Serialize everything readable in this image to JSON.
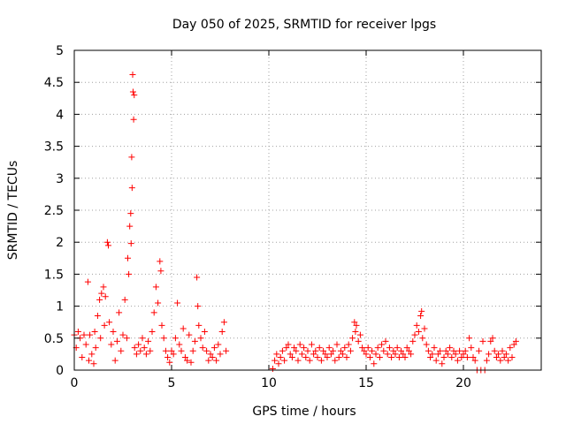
{
  "chart_data": {
    "type": "scatter",
    "title": "Day 050 of 2025, SRMTID for receiver lpgs",
    "xlabel": "GPS time / hours",
    "ylabel": "SRMTID / TECUs",
    "xlim": [
      0,
      24
    ],
    "ylim": [
      0,
      5
    ],
    "xticks": [
      "0",
      "5",
      "10",
      "15",
      "20"
    ],
    "yticks": [
      "0",
      "0.5",
      "1",
      "1.5",
      "2",
      "2.5",
      "3",
      "3.5",
      "4",
      "4.5",
      "5"
    ],
    "grid": true,
    "marker": "+",
    "series": [
      {
        "name": "SRMTID",
        "color": "#ff0000",
        "points": [
          [
            0.0,
            0.55
          ],
          [
            0.1,
            0.35
          ],
          [
            0.2,
            0.6
          ],
          [
            0.3,
            0.5
          ],
          [
            0.4,
            0.2
          ],
          [
            0.5,
            0.55
          ],
          [
            0.6,
            0.4
          ],
          [
            0.7,
            1.38
          ],
          [
            0.75,
            0.15
          ],
          [
            0.8,
            0.55
          ],
          [
            0.9,
            0.25
          ],
          [
            1.0,
            0.1
          ],
          [
            1.05,
            0.6
          ],
          [
            1.1,
            0.35
          ],
          [
            1.2,
            0.85
          ],
          [
            1.3,
            1.1
          ],
          [
            1.35,
            0.5
          ],
          [
            1.4,
            1.2
          ],
          [
            1.5,
            1.3
          ],
          [
            1.55,
            0.7
          ],
          [
            1.6,
            1.15
          ],
          [
            1.7,
            2.0
          ],
          [
            1.75,
            1.95
          ],
          [
            1.8,
            0.75
          ],
          [
            1.9,
            0.4
          ],
          [
            2.0,
            0.6
          ],
          [
            2.1,
            0.15
          ],
          [
            2.2,
            0.45
          ],
          [
            2.3,
            0.9
          ],
          [
            2.4,
            0.3
          ],
          [
            2.5,
            0.55
          ],
          [
            2.6,
            1.1
          ],
          [
            2.7,
            0.5
          ],
          [
            2.75,
            1.75
          ],
          [
            2.8,
            1.5
          ],
          [
            2.85,
            2.25
          ],
          [
            2.9,
            2.45
          ],
          [
            2.92,
            1.98
          ],
          [
            2.95,
            3.33
          ],
          [
            2.97,
            2.85
          ],
          [
            3.0,
            4.62
          ],
          [
            3.02,
            4.35
          ],
          [
            3.05,
            3.92
          ],
          [
            3.08,
            4.3
          ],
          [
            3.1,
            0.35
          ],
          [
            3.2,
            0.25
          ],
          [
            3.3,
            0.4
          ],
          [
            3.4,
            0.3
          ],
          [
            3.5,
            0.5
          ],
          [
            3.6,
            0.35
          ],
          [
            3.7,
            0.25
          ],
          [
            3.8,
            0.45
          ],
          [
            3.9,
            0.3
          ],
          [
            4.0,
            0.6
          ],
          [
            4.1,
            0.9
          ],
          [
            4.2,
            1.3
          ],
          [
            4.3,
            1.05
          ],
          [
            4.4,
            1.7
          ],
          [
            4.45,
            1.55
          ],
          [
            4.5,
            0.7
          ],
          [
            4.6,
            0.5
          ],
          [
            4.7,
            0.3
          ],
          [
            4.8,
            0.2
          ],
          [
            4.9,
            0.12
          ],
          [
            5.0,
            0.3
          ],
          [
            5.1,
            0.25
          ],
          [
            5.2,
            0.5
          ],
          [
            5.3,
            1.05
          ],
          [
            5.4,
            0.4
          ],
          [
            5.5,
            0.3
          ],
          [
            5.6,
            0.65
          ],
          [
            5.7,
            0.2
          ],
          [
            5.8,
            0.15
          ],
          [
            5.9,
            0.55
          ],
          [
            6.0,
            0.12
          ],
          [
            6.1,
            0.3
          ],
          [
            6.2,
            0.45
          ],
          [
            6.3,
            1.45
          ],
          [
            6.35,
            1.0
          ],
          [
            6.4,
            0.7
          ],
          [
            6.5,
            0.5
          ],
          [
            6.6,
            0.35
          ],
          [
            6.7,
            0.6
          ],
          [
            6.8,
            0.3
          ],
          [
            6.9,
            0.15
          ],
          [
            7.0,
            0.25
          ],
          [
            7.1,
            0.2
          ],
          [
            7.2,
            0.35
          ],
          [
            7.3,
            0.15
          ],
          [
            7.4,
            0.4
          ],
          [
            7.5,
            0.25
          ],
          [
            7.6,
            0.6
          ],
          [
            7.7,
            0.75
          ],
          [
            7.8,
            0.3
          ],
          [
            10.2,
            0.02
          ],
          [
            10.3,
            0.15
          ],
          [
            10.4,
            0.25
          ],
          [
            10.5,
            0.1
          ],
          [
            10.6,
            0.2
          ],
          [
            10.7,
            0.3
          ],
          [
            10.8,
            0.15
          ],
          [
            10.9,
            0.35
          ],
          [
            11.0,
            0.4
          ],
          [
            11.1,
            0.25
          ],
          [
            11.2,
            0.2
          ],
          [
            11.3,
            0.35
          ],
          [
            11.4,
            0.3
          ],
          [
            11.5,
            0.15
          ],
          [
            11.6,
            0.4
          ],
          [
            11.7,
            0.25
          ],
          [
            11.8,
            0.35
          ],
          [
            11.9,
            0.2
          ],
          [
            12.0,
            0.3
          ],
          [
            12.1,
            0.15
          ],
          [
            12.2,
            0.4
          ],
          [
            12.3,
            0.25
          ],
          [
            12.4,
            0.3
          ],
          [
            12.5,
            0.2
          ],
          [
            12.6,
            0.35
          ],
          [
            12.7,
            0.15
          ],
          [
            12.8,
            0.3
          ],
          [
            12.9,
            0.25
          ],
          [
            13.0,
            0.2
          ],
          [
            13.1,
            0.35
          ],
          [
            13.2,
            0.25
          ],
          [
            13.3,
            0.3
          ],
          [
            13.4,
            0.15
          ],
          [
            13.5,
            0.4
          ],
          [
            13.6,
            0.2
          ],
          [
            13.7,
            0.3
          ],
          [
            13.8,
            0.25
          ],
          [
            13.9,
            0.35
          ],
          [
            14.0,
            0.2
          ],
          [
            14.1,
            0.4
          ],
          [
            14.2,
            0.3
          ],
          [
            14.3,
            0.5
          ],
          [
            14.4,
            0.75
          ],
          [
            14.45,
            0.6
          ],
          [
            14.5,
            0.7
          ],
          [
            14.6,
            0.45
          ],
          [
            14.7,
            0.55
          ],
          [
            14.8,
            0.35
          ],
          [
            14.9,
            0.3
          ],
          [
            15.0,
            0.25
          ],
          [
            15.1,
            0.35
          ],
          [
            15.2,
            0.2
          ],
          [
            15.3,
            0.3
          ],
          [
            15.4,
            0.1
          ],
          [
            15.5,
            0.25
          ],
          [
            15.6,
            0.35
          ],
          [
            15.7,
            0.2
          ],
          [
            15.8,
            0.4
          ],
          [
            15.9,
            0.3
          ],
          [
            16.0,
            0.45
          ],
          [
            16.1,
            0.25
          ],
          [
            16.2,
            0.35
          ],
          [
            16.3,
            0.2
          ],
          [
            16.4,
            0.3
          ],
          [
            16.5,
            0.25
          ],
          [
            16.6,
            0.35
          ],
          [
            16.7,
            0.2
          ],
          [
            16.8,
            0.3
          ],
          [
            16.9,
            0.25
          ],
          [
            17.0,
            0.2
          ],
          [
            17.1,
            0.35
          ],
          [
            17.2,
            0.3
          ],
          [
            17.3,
            0.25
          ],
          [
            17.4,
            0.45
          ],
          [
            17.5,
            0.55
          ],
          [
            17.6,
            0.7
          ],
          [
            17.7,
            0.6
          ],
          [
            17.8,
            0.85
          ],
          [
            17.85,
            0.92
          ],
          [
            17.9,
            0.5
          ],
          [
            18.0,
            0.65
          ],
          [
            18.1,
            0.4
          ],
          [
            18.2,
            0.3
          ],
          [
            18.3,
            0.2
          ],
          [
            18.4,
            0.25
          ],
          [
            18.5,
            0.35
          ],
          [
            18.6,
            0.15
          ],
          [
            18.7,
            0.25
          ],
          [
            18.8,
            0.3
          ],
          [
            18.9,
            0.1
          ],
          [
            19.0,
            0.2
          ],
          [
            19.1,
            0.3
          ],
          [
            19.2,
            0.25
          ],
          [
            19.3,
            0.35
          ],
          [
            19.4,
            0.2
          ],
          [
            19.5,
            0.3
          ],
          [
            19.6,
            0.25
          ],
          [
            19.7,
            0.15
          ],
          [
            19.8,
            0.3
          ],
          [
            19.9,
            0.2
          ],
          [
            20.0,
            0.25
          ],
          [
            20.1,
            0.3
          ],
          [
            20.2,
            0.2
          ],
          [
            20.3,
            0.5
          ],
          [
            20.4,
            0.35
          ],
          [
            20.5,
            0.2
          ],
          [
            20.6,
            0.15
          ],
          [
            20.7,
            0.0
          ],
          [
            20.8,
            0.3
          ],
          [
            20.9,
            0.0
          ],
          [
            21.0,
            0.45
          ],
          [
            21.1,
            0.0
          ],
          [
            21.2,
            0.15
          ],
          [
            21.3,
            0.25
          ],
          [
            21.4,
            0.45
          ],
          [
            21.5,
            0.5
          ],
          [
            21.6,
            0.3
          ],
          [
            21.7,
            0.2
          ],
          [
            21.8,
            0.25
          ],
          [
            21.9,
            0.15
          ],
          [
            22.0,
            0.3
          ],
          [
            22.1,
            0.2
          ],
          [
            22.2,
            0.25
          ],
          [
            22.3,
            0.15
          ],
          [
            22.4,
            0.35
          ],
          [
            22.5,
            0.2
          ],
          [
            22.6,
            0.4
          ],
          [
            22.7,
            0.45
          ]
        ]
      }
    ]
  }
}
